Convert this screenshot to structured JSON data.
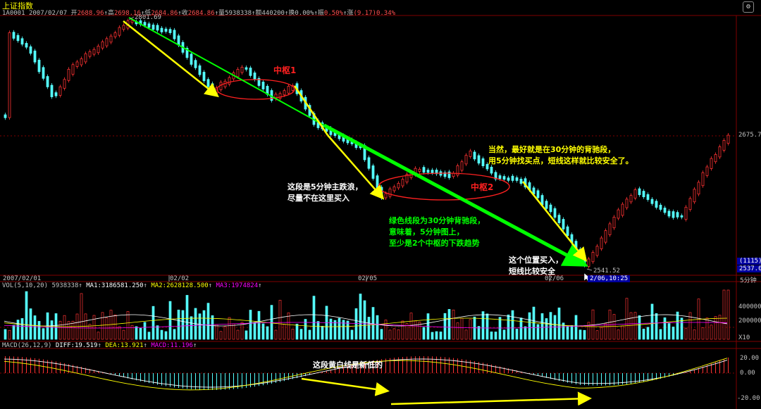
{
  "header": {
    "title": "上证指数",
    "symbol": "1A0001",
    "date": "2007/02/07",
    "open_label": "开",
    "open": "2688.96",
    "high_label": "高",
    "high": "2698.16",
    "low_label": "低",
    "low": "2684.86",
    "close_label": "收",
    "close": "2684.86",
    "vol_label": "量",
    "vol": "5938338",
    "amount_label": "额",
    "amount": "440200",
    "turnover_label": "换",
    "turnover": "0.00%",
    "amplitude_label": "振",
    "amplitude": "0.50%",
    "change_label": "涨",
    "change": "(9.17)0.34%"
  },
  "price_axis": {
    "high_mark": "2801.69",
    "low_mark": "2541.52",
    "right_level": "2675.7",
    "count_box": "(1115)",
    "right_bottom": "2537.08"
  },
  "date_axis": {
    "d1": "2007/02/01",
    "d2": "02/02",
    "d3": "02/05",
    "d4": "02/06",
    "cursor": "2/06,10:25",
    "period": "5分钟"
  },
  "volume": {
    "header": "VOL(5,10,20)",
    "value": "5938338",
    "ma1_label": "MA1:",
    "ma1": "3186581.250",
    "ma2_label": "MA2:",
    "ma2": "2628128.500",
    "ma3_label": "MA3:",
    "ma3": "1974824",
    "axis_top": "400000",
    "axis_mid": "200000",
    "axis_unit": "X10"
  },
  "macd": {
    "header": "MACD(26,12,9)",
    "diff_label": "DIFF:",
    "diff": "19.519",
    "dea_label": "DEA:",
    "dea": "13.921",
    "macd_label": "MACD:",
    "macd": "11.196",
    "axis_top": "20.00",
    "axis_mid": "0.00",
    "axis_bot": "-20.00"
  },
  "annotations": {
    "zhongshu1": "中枢1",
    "zhongshu2": "中枢2",
    "text1_l1": "当然，最好就是在30分钟的背驰段，",
    "text1_l2": "用5分钟找买点，短线这样就比较安全了。",
    "text2_l1": "这段是5分钟主跌浪，",
    "text2_l2": "尽量不在这里买入",
    "text3_l1": "绿色线段为30分钟背驰段，",
    "text3_l2": "意味着，5分钟图上，",
    "text3_l3": "至少是2个中枢的下跌趋势",
    "text4_l1": "这个位置买入，",
    "text4_l2": "短线比较安全",
    "text5": "这段黄白线是新低的"
  },
  "colors": {
    "up": "#ff3232",
    "down": "#54fcfc",
    "arrow_yellow": "#ffff00",
    "arrow_green": "#00ff00",
    "grid_red": "#800000"
  }
}
